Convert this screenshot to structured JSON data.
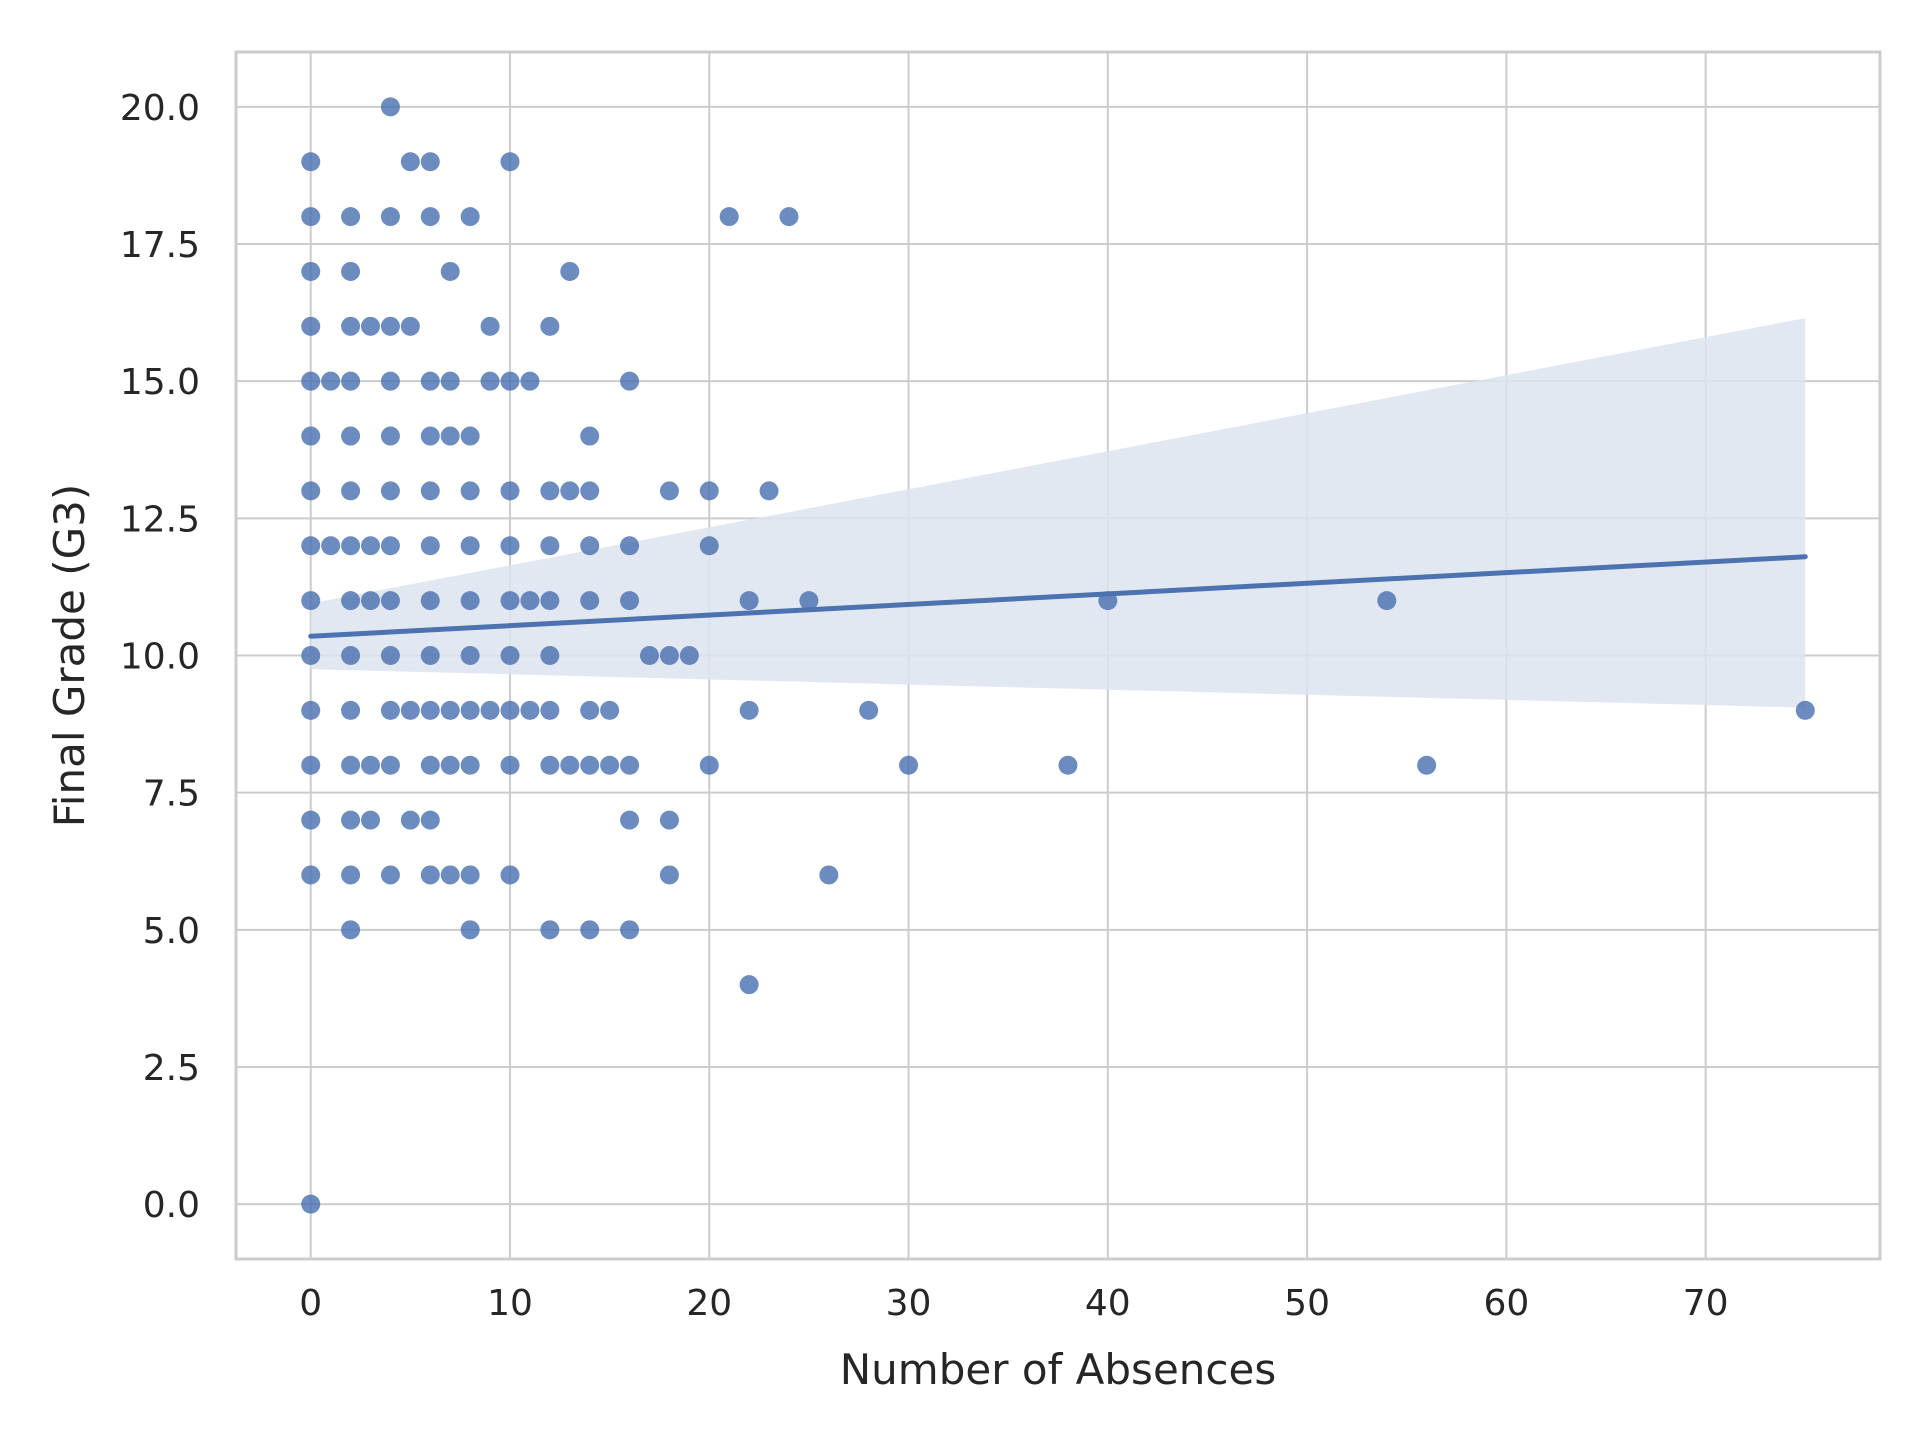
{
  "chart_data": {
    "type": "scatter",
    "title": "",
    "xlabel": "Number of Absences",
    "ylabel": "Final Grade (G3)",
    "xlim": [
      -3.75,
      78.75
    ],
    "ylim": [
      -1,
      21
    ],
    "x_ticks": [
      0,
      10,
      20,
      30,
      40,
      50,
      60,
      70
    ],
    "x_tick_labels": [
      "0",
      "10",
      "20",
      "30",
      "40",
      "50",
      "60",
      "70"
    ],
    "y_ticks": [
      0,
      2.5,
      5,
      7.5,
      10,
      12.5,
      15,
      17.5,
      20
    ],
    "y_tick_labels": [
      "0.0",
      "2.5",
      "5.0",
      "7.5",
      "10.0",
      "12.5",
      "15.0",
      "17.5",
      "20.0"
    ],
    "grid": true,
    "point_color": "#4c72b0",
    "band_color": "#dde4f0",
    "points": [
      [
        4,
        20
      ],
      [
        0,
        19
      ],
      [
        5,
        19
      ],
      [
        6,
        19
      ],
      [
        10,
        19
      ],
      [
        0,
        18
      ],
      [
        2,
        18
      ],
      [
        4,
        18
      ],
      [
        6,
        18
      ],
      [
        8,
        18
      ],
      [
        21,
        18
      ],
      [
        24,
        18
      ],
      [
        0,
        17
      ],
      [
        2,
        17
      ],
      [
        7,
        17
      ],
      [
        13,
        17
      ],
      [
        0,
        16
      ],
      [
        2,
        16
      ],
      [
        3,
        16
      ],
      [
        4,
        16
      ],
      [
        5,
        16
      ],
      [
        9,
        16
      ],
      [
        12,
        16
      ],
      [
        0,
        15
      ],
      [
        1,
        15
      ],
      [
        2,
        15
      ],
      [
        4,
        15
      ],
      [
        6,
        15
      ],
      [
        7,
        15
      ],
      [
        9,
        15
      ],
      [
        10,
        15
      ],
      [
        11,
        15
      ],
      [
        16,
        15
      ],
      [
        0,
        14
      ],
      [
        2,
        14
      ],
      [
        4,
        14
      ],
      [
        6,
        14
      ],
      [
        7,
        14
      ],
      [
        8,
        14
      ],
      [
        14,
        14
      ],
      [
        0,
        13
      ],
      [
        2,
        13
      ],
      [
        4,
        13
      ],
      [
        6,
        13
      ],
      [
        8,
        13
      ],
      [
        10,
        13
      ],
      [
        12,
        13
      ],
      [
        13,
        13
      ],
      [
        14,
        13
      ],
      [
        18,
        13
      ],
      [
        20,
        13
      ],
      [
        23,
        13
      ],
      [
        0,
        12
      ],
      [
        1,
        12
      ],
      [
        2,
        12
      ],
      [
        3,
        12
      ],
      [
        4,
        12
      ],
      [
        6,
        12
      ],
      [
        8,
        12
      ],
      [
        10,
        12
      ],
      [
        12,
        12
      ],
      [
        14,
        12
      ],
      [
        16,
        12
      ],
      [
        20,
        12
      ],
      [
        0,
        11
      ],
      [
        2,
        11
      ],
      [
        3,
        11
      ],
      [
        4,
        11
      ],
      [
        6,
        11
      ],
      [
        8,
        11
      ],
      [
        10,
        11
      ],
      [
        11,
        11
      ],
      [
        12,
        11
      ],
      [
        14,
        11
      ],
      [
        16,
        11
      ],
      [
        22,
        11
      ],
      [
        25,
        11
      ],
      [
        40,
        11
      ],
      [
        54,
        11
      ],
      [
        0,
        10
      ],
      [
        2,
        10
      ],
      [
        4,
        10
      ],
      [
        6,
        10
      ],
      [
        8,
        10
      ],
      [
        10,
        10
      ],
      [
        12,
        10
      ],
      [
        17,
        10
      ],
      [
        18,
        10
      ],
      [
        19,
        10
      ],
      [
        0,
        9
      ],
      [
        2,
        9
      ],
      [
        4,
        9
      ],
      [
        5,
        9
      ],
      [
        6,
        9
      ],
      [
        7,
        9
      ],
      [
        8,
        9
      ],
      [
        9,
        9
      ],
      [
        10,
        9
      ],
      [
        11,
        9
      ],
      [
        12,
        9
      ],
      [
        14,
        9
      ],
      [
        15,
        9
      ],
      [
        22,
        9
      ],
      [
        28,
        9
      ],
      [
        75,
        9
      ],
      [
        0,
        8
      ],
      [
        2,
        8
      ],
      [
        3,
        8
      ],
      [
        4,
        8
      ],
      [
        6,
        8
      ],
      [
        7,
        8
      ],
      [
        8,
        8
      ],
      [
        10,
        8
      ],
      [
        12,
        8
      ],
      [
        13,
        8
      ],
      [
        14,
        8
      ],
      [
        15,
        8
      ],
      [
        16,
        8
      ],
      [
        20,
        8
      ],
      [
        30,
        8
      ],
      [
        38,
        8
      ],
      [
        56,
        8
      ],
      [
        0,
        7
      ],
      [
        2,
        7
      ],
      [
        3,
        7
      ],
      [
        5,
        7
      ],
      [
        6,
        7
      ],
      [
        16,
        7
      ],
      [
        18,
        7
      ],
      [
        0,
        6
      ],
      [
        2,
        6
      ],
      [
        4,
        6
      ],
      [
        6,
        6
      ],
      [
        7,
        6
      ],
      [
        8,
        6
      ],
      [
        10,
        6
      ],
      [
        18,
        6
      ],
      [
        26,
        6
      ],
      [
        2,
        5
      ],
      [
        8,
        5
      ],
      [
        12,
        5
      ],
      [
        14,
        5
      ],
      [
        16,
        5
      ],
      [
        22,
        4
      ],
      [
        0,
        0
      ]
    ],
    "regression": {
      "x": [
        0,
        75
      ],
      "y": [
        10.35,
        11.8
      ],
      "ci_lower": [
        9.75,
        9.05
      ],
      "ci_upper": [
        10.95,
        16.15
      ],
      "line_color": "#4c72b0"
    }
  }
}
